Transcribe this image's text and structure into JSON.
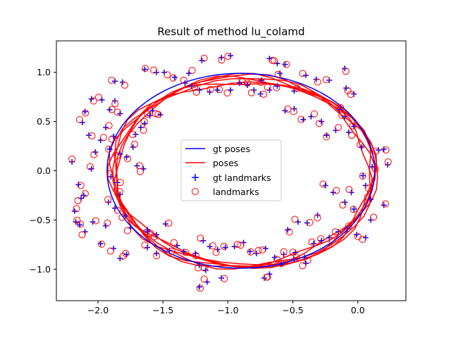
{
  "chart_data": {
    "type": "scatter",
    "title": "Result of method lu_colamd",
    "xlabel": "",
    "ylabel": "",
    "xlim": [
      -2.32,
      0.37
    ],
    "ylim": [
      -1.32,
      1.32
    ],
    "xticks": [
      -2.0,
      -1.5,
      -1.0,
      -0.5,
      0.0
    ],
    "xtick_labels": [
      "−2.0",
      "−1.5",
      "−1.0",
      "−0.5",
      "0.0"
    ],
    "yticks": [
      -1.0,
      -0.5,
      0.0,
      0.5,
      1.0
    ],
    "ytick_labels": [
      "−1.0",
      "−0.5",
      "0.0",
      "0.5",
      "1.0"
    ],
    "grid": false,
    "legend_position": "center",
    "series": [
      {
        "name": "gt poses",
        "kind": "line",
        "color": "#0000ff",
        "ellipse": {
          "cx": -0.9,
          "cy": 0.0,
          "rx": 1.03,
          "ry": 0.99
        }
      },
      {
        "name": "poses",
        "kind": "line",
        "color": "#ff0000",
        "loops": 6
      },
      {
        "name": "gt landmarks",
        "kind": "marker",
        "marker": "+",
        "color": "#0000ff"
      },
      {
        "name": "landmarks",
        "kind": "marker",
        "marker": "o",
        "color": "#ff0000"
      }
    ],
    "landmarks": [
      [
        -2.2,
        0.09
      ],
      [
        -2.15,
        -0.14
      ],
      [
        -2.13,
        -0.28
      ],
      [
        -2.18,
        -0.41
      ],
      [
        -2.14,
        -0.55
      ],
      [
        -2.1,
        -0.62
      ],
      [
        -2.04,
        -0.52
      ],
      [
        -2.05,
        0.02
      ],
      [
        -2.02,
        0.19
      ],
      [
        -2.07,
        0.36
      ],
      [
        -2.12,
        0.49
      ],
      [
        -2.1,
        0.6
      ],
      [
        -2.05,
        0.73
      ],
      [
        -1.97,
        0.72
      ],
      [
        -1.91,
        0.62
      ],
      [
        -1.87,
        0.71
      ],
      [
        -1.83,
        0.58
      ],
      [
        -1.94,
        0.44
      ],
      [
        -1.88,
        0.35
      ],
      [
        -1.91,
        0.22
      ],
      [
        -1.98,
        0.31
      ],
      [
        -1.83,
        0.17
      ],
      [
        -1.78,
        0.14
      ],
      [
        -1.73,
        0.24
      ],
      [
        -1.71,
        0.37
      ],
      [
        -1.67,
        0.44
      ],
      [
        -1.64,
        0.48
      ],
      [
        -1.6,
        0.56
      ],
      [
        -1.58,
        0.61
      ],
      [
        -1.52,
        0.57
      ],
      [
        -1.83,
        -0.24
      ],
      [
        -1.87,
        -0.38
      ],
      [
        -1.79,
        -0.46
      ],
      [
        -1.94,
        -0.56
      ],
      [
        -1.98,
        -0.74
      ],
      [
        -1.88,
        -0.79
      ],
      [
        -1.83,
        -0.89
      ],
      [
        -1.78,
        -0.85
      ],
      [
        -1.62,
        -0.6
      ],
      [
        -1.48,
        -0.54
      ],
      [
        -1.62,
        -0.78
      ],
      [
        -1.55,
        -0.84
      ],
      [
        -1.45,
        -0.81
      ],
      [
        -1.39,
        -0.76
      ],
      [
        -1.34,
        -0.82
      ],
      [
        -1.25,
        -0.84
      ],
      [
        -1.19,
        -0.71
      ],
      [
        -1.14,
        -0.77
      ],
      [
        -1.08,
        -0.8
      ],
      [
        -1.02,
        -0.78
      ],
      [
        -0.95,
        -0.77
      ],
      [
        -0.88,
        -0.73
      ],
      [
        -0.83,
        -0.82
      ],
      [
        -0.78,
        -0.84
      ],
      [
        -0.71,
        -0.79
      ],
      [
        -0.64,
        -0.88
      ],
      [
        -0.57,
        -0.85
      ],
      [
        -0.48,
        -0.83
      ],
      [
        -0.41,
        -0.88
      ],
      [
        -0.34,
        -0.74
      ],
      [
        -0.28,
        -0.71
      ],
      [
        -0.22,
        -0.68
      ],
      [
        -0.15,
        -0.62
      ],
      [
        -0.08,
        -0.59
      ],
      [
        -0.01,
        -0.65
      ],
      [
        0.06,
        -0.68
      ],
      [
        0.1,
        -0.5
      ],
      [
        -0.03,
        -0.39
      ],
      [
        -0.1,
        -0.32
      ],
      [
        -0.19,
        -0.22
      ],
      [
        -0.25,
        -0.15
      ],
      [
        -0.31,
        -0.45
      ],
      [
        -0.39,
        -0.53
      ],
      [
        -0.46,
        -0.52
      ],
      [
        -0.54,
        -0.6
      ],
      [
        -1.22,
        -1.18
      ],
      [
        -1.16,
        -1.13
      ],
      [
        -1.05,
        -1.09
      ],
      [
        -1.22,
        -0.96
      ],
      [
        -1.17,
        -1.01
      ],
      [
        -0.72,
        -1.09
      ],
      [
        -0.68,
        -1.05
      ],
      [
        -0.59,
        -0.95
      ],
      [
        -0.49,
        -0.9
      ],
      [
        -0.4,
        -0.94
      ],
      [
        0.2,
        0.22
      ],
      [
        0.23,
        0.06
      ],
      [
        0.16,
        0.21
      ],
      [
        0.11,
        0.04
      ],
      [
        0.03,
        0.24
      ],
      [
        -0.03,
        0.45
      ],
      [
        -0.07,
        0.39
      ],
      [
        -0.1,
        0.55
      ],
      [
        -0.14,
        0.62
      ],
      [
        -0.09,
        0.84
      ],
      [
        -0.03,
        0.78
      ],
      [
        -0.17,
        0.41
      ],
      [
        -0.24,
        0.36
      ],
      [
        -0.28,
        0.5
      ],
      [
        -0.36,
        0.55
      ],
      [
        -0.42,
        0.52
      ],
      [
        -0.49,
        0.63
      ],
      [
        -0.56,
        0.61
      ],
      [
        -0.4,
        0.97
      ],
      [
        -0.32,
        0.93
      ],
      [
        -0.56,
        1.08
      ],
      [
        -0.62,
        1.09
      ],
      [
        -0.68,
        1.14
      ],
      [
        -0.62,
        0.86
      ],
      [
        -0.68,
        0.82
      ],
      [
        -0.75,
        0.78
      ],
      [
        -0.8,
        0.82
      ],
      [
        -0.85,
        0.87
      ],
      [
        -0.91,
        0.89
      ],
      [
        -0.98,
        0.82
      ],
      [
        -1.08,
        0.82
      ],
      [
        -1.14,
        0.8
      ],
      [
        -1.22,
        0.82
      ],
      [
        -1.28,
        0.86
      ],
      [
        -1.33,
        0.89
      ],
      [
        -1.41,
        0.95
      ],
      [
        -1.49,
        1.0
      ],
      [
        -1.55,
        1.0
      ],
      [
        -1.64,
        1.03
      ],
      [
        -1.81,
        0.9
      ],
      [
        -1.87,
        0.91
      ],
      [
        -1.2,
        1.12
      ],
      [
        -1.05,
        1.15
      ],
      [
        -0.98,
        1.17
      ],
      [
        -1.3,
        0.99
      ],
      [
        -0.6,
        0.99
      ],
      [
        -0.74,
        0.92
      ],
      [
        -0.49,
        0.81
      ],
      [
        -0.22,
        0.92
      ],
      [
        -0.1,
        1.04
      ],
      [
        0.2,
        -0.35
      ],
      [
        0.1,
        -0.29
      ],
      [
        0.06,
        -0.15
      ],
      [
        0.04,
        -0.05
      ],
      [
        -0.05,
        -0.22
      ],
      [
        -1.62,
        -0.62
      ],
      [
        -1.55,
        -0.65
      ],
      [
        -1.92,
        -0.32
      ],
      [
        -1.7,
        0.05
      ],
      [
        -1.65,
        0.02
      ],
      [
        -2.11,
        -0.25
      ],
      [
        -2.17,
        -0.52
      ],
      [
        -1.75,
        -0.58
      ],
      [
        -1.85,
        -0.12
      ],
      [
        -1.9,
        -0.06
      ]
    ]
  }
}
